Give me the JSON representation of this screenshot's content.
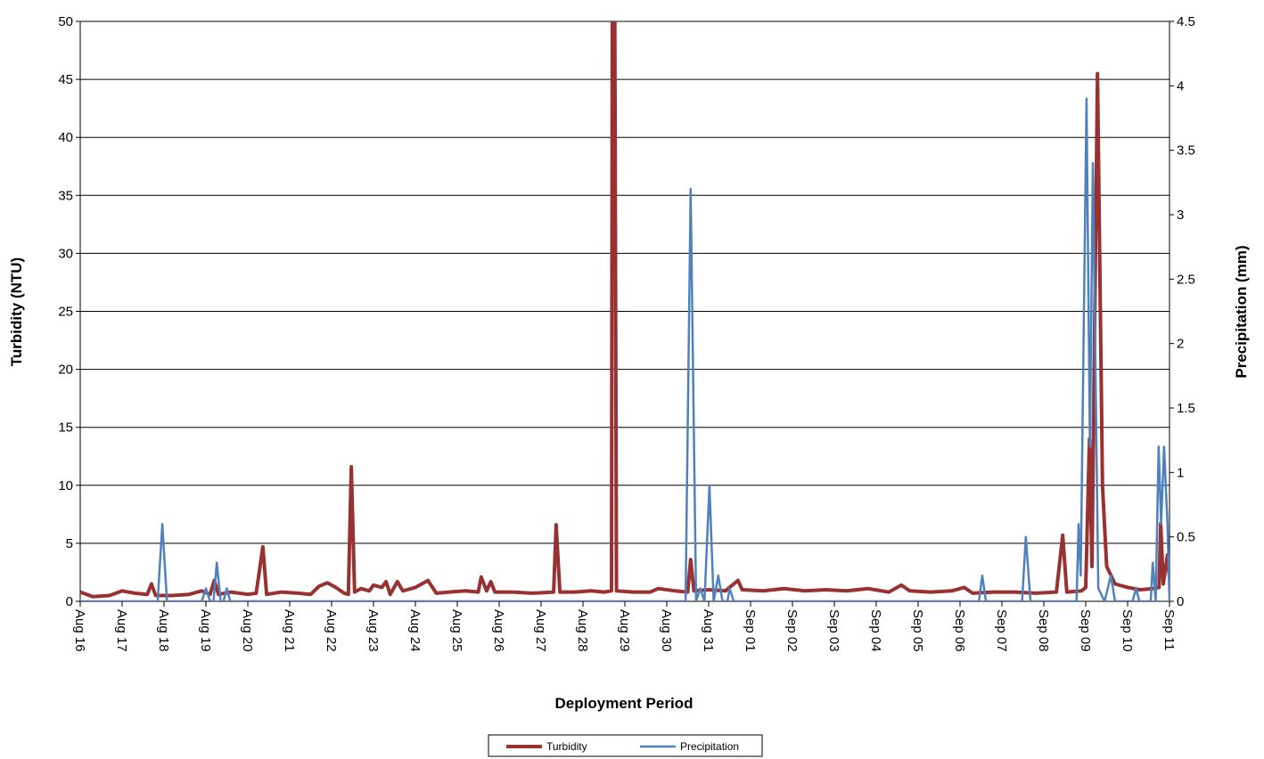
{
  "chart_data": {
    "type": "line",
    "x_label": "Deployment Period",
    "y_label": "Turbidity (NTU)",
    "y2_label": "Precipitation (mm)",
    "xlim": [
      0,
      26
    ],
    "xticks": [
      {
        "value": 0,
        "label": "Aug 16"
      },
      {
        "value": 1,
        "label": "Aug 17"
      },
      {
        "value": 2,
        "label": "Aug 18"
      },
      {
        "value": 3,
        "label": "Aug 19"
      },
      {
        "value": 4,
        "label": "Aug 20"
      },
      {
        "value": 5,
        "label": "Aug 21"
      },
      {
        "value": 6,
        "label": "Aug 22"
      },
      {
        "value": 7,
        "label": "Aug 23"
      },
      {
        "value": 8,
        "label": "Aug 24"
      },
      {
        "value": 9,
        "label": "Aug 25"
      },
      {
        "value": 10,
        "label": "Aug 26"
      },
      {
        "value": 11,
        "label": "Aug 27"
      },
      {
        "value": 12,
        "label": "Aug 28"
      },
      {
        "value": 13,
        "label": "Aug 29"
      },
      {
        "value": 14,
        "label": "Aug 30"
      },
      {
        "value": 15,
        "label": "Aug 31"
      },
      {
        "value": 16,
        "label": "Sep 01"
      },
      {
        "value": 17,
        "label": "Sep 02"
      },
      {
        "value": 18,
        "label": "Sep 03"
      },
      {
        "value": 19,
        "label": "Sep 04"
      },
      {
        "value": 20,
        "label": "Sep 05"
      },
      {
        "value": 21,
        "label": "Sep 06"
      },
      {
        "value": 22,
        "label": "Sep 07"
      },
      {
        "value": 23,
        "label": "Sep 08"
      },
      {
        "value": 24,
        "label": "Sep 09"
      },
      {
        "value": 25,
        "label": "Sep 10"
      },
      {
        "value": 26,
        "label": "Sep 11"
      }
    ],
    "ylim": [
      0,
      50
    ],
    "yticks": [
      0,
      5,
      10,
      15,
      20,
      25,
      30,
      35,
      40,
      45,
      50
    ],
    "y2lim": [
      0,
      4.5
    ],
    "y2ticks": [
      0,
      0.5,
      1,
      1.5,
      2,
      2.5,
      3,
      3.5,
      4,
      4.5
    ],
    "grid": true,
    "legend": "bottom",
    "series": [
      {
        "name": "Turbidity",
        "color": "#983232",
        "axis": "y",
        "x": [
          0,
          0.3,
          0.7,
          1.0,
          1.3,
          1.6,
          1.7,
          1.8,
          2.2,
          2.6,
          2.9,
          3.1,
          3.2,
          3.3,
          3.6,
          4.0,
          4.2,
          4.36,
          4.45,
          4.8,
          5.2,
          5.5,
          5.7,
          5.9,
          6.1,
          6.3,
          6.4,
          6.47,
          6.55,
          6.7,
          6.9,
          7.0,
          7.2,
          7.3,
          7.4,
          7.57,
          7.7,
          8.0,
          8.3,
          8.5,
          8.8,
          9.2,
          9.5,
          9.57,
          9.7,
          9.8,
          9.9,
          10.3,
          10.8,
          11.3,
          11.36,
          11.45,
          11.8,
          12.2,
          12.5,
          12.68,
          12.7,
          12.76,
          12.8,
          13.2,
          13.6,
          13.8,
          14.2,
          14.5,
          14.57,
          14.65,
          15.0,
          15.4,
          15.7,
          15.8,
          16.3,
          16.8,
          17.3,
          17.8,
          18.3,
          18.8,
          19.3,
          19.6,
          19.8,
          20.3,
          20.8,
          21.1,
          21.3,
          21.8,
          22.3,
          22.8,
          23.3,
          23.45,
          23.55,
          23.9,
          24.0,
          24.09,
          24.15,
          24.28,
          24.4,
          24.5,
          24.7,
          25.0,
          25.3,
          25.6,
          25.75,
          25.79,
          25.85,
          25.95,
          26
        ],
        "values": [
          0.8,
          0.4,
          0.5,
          0.9,
          0.7,
          0.6,
          1.5,
          0.5,
          0.5,
          0.6,
          0.9,
          0.6,
          1.8,
          0.6,
          0.8,
          0.6,
          0.7,
          4.7,
          0.6,
          0.8,
          0.7,
          0.6,
          1.3,
          1.6,
          1.2,
          0.7,
          0.6,
          11.6,
          0.8,
          1.1,
          0.9,
          1.4,
          1.2,
          1.7,
          0.6,
          1.7,
          0.9,
          1.2,
          1.8,
          0.7,
          0.8,
          0.9,
          0.8,
          2.1,
          0.9,
          1.7,
          0.8,
          0.8,
          0.7,
          0.8,
          6.6,
          0.8,
          0.8,
          0.9,
          0.8,
          0.9,
          50,
          50,
          0.9,
          0.8,
          0.8,
          1.1,
          0.9,
          0.8,
          3.6,
          0.9,
          1.0,
          0.9,
          1.8,
          1.0,
          0.9,
          1.1,
          0.9,
          1.0,
          0.9,
          1.1,
          0.8,
          1.4,
          0.9,
          0.8,
          0.9,
          1.2,
          0.7,
          0.8,
          0.8,
          0.7,
          0.8,
          5.7,
          0.8,
          0.9,
          1.2,
          14,
          3,
          45.5,
          10,
          3,
          1.5,
          1.2,
          1.0,
          1.1,
          1.2,
          6.7,
          1.5,
          4,
          2
        ]
      },
      {
        "name": "Precipitation",
        "color": "#4f81bd",
        "axis": "y2",
        "x": [
          0,
          1.85,
          1.96,
          2.07,
          2.9,
          3.0,
          3.1,
          3.18,
          3.26,
          3.35,
          3.42,
          3.5,
          3.58,
          14.45,
          14.57,
          14.7,
          14.8,
          14.9,
          15.02,
          15.12,
          15.23,
          15.33,
          15.45,
          15.5,
          15.6,
          21.45,
          21.53,
          21.62,
          22.48,
          22.57,
          22.68,
          23.78,
          23.83,
          23.88,
          24.02,
          24.1,
          24.17,
          24.3,
          24.45,
          24.6,
          24.7,
          25.12,
          25.2,
          25.28,
          25.55,
          25.6,
          25.67,
          25.74,
          25.8,
          25.87,
          25.95,
          26
        ],
        "values": [
          0,
          0,
          0.6,
          0,
          0,
          0.1,
          0,
          0,
          0.3,
          0,
          0,
          0.1,
          0,
          0,
          3.2,
          0,
          0.1,
          0,
          0.9,
          0,
          0.2,
          0,
          0,
          0.1,
          0,
          0,
          0.2,
          0,
          0,
          0.5,
          0,
          0,
          0.6,
          0.2,
          3.9,
          1.2,
          3.4,
          0.1,
          0,
          0.2,
          0,
          0,
          0.1,
          0,
          0,
          0.3,
          0,
          1.2,
          0.6,
          1.2,
          0.6,
          0
        ]
      }
    ]
  }
}
